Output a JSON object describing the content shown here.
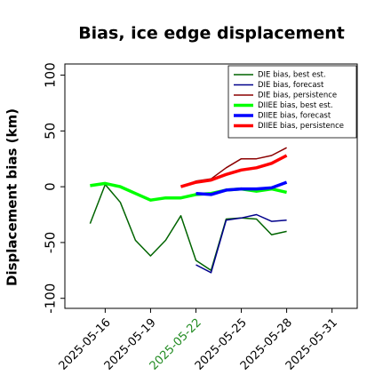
{
  "chart_data": {
    "type": "line",
    "title": "Bias, ice edge displacement",
    "ylabel": "Displacement bias (km)",
    "x": [
      "2025-05-15",
      "2025-05-16",
      "2025-05-17",
      "2025-05-18",
      "2025-05-19",
      "2025-05-20",
      "2025-05-21",
      "2025-05-22",
      "2025-05-23",
      "2025-05-24",
      "2025-05-25",
      "2025-05-26",
      "2025-05-27",
      "2025-05-28"
    ],
    "xlim": [
      "2025-05-13T08:00Z",
      "2025-06-01T16:00Z"
    ],
    "xticks": [
      "2025-05-16",
      "2025-05-19",
      "2025-05-22",
      "2025-05-25",
      "2025-05-28",
      "2025-05-31"
    ],
    "xtick_colors": [
      "#000000",
      "#000000",
      "#228b22",
      "#000000",
      "#000000",
      "#000000"
    ],
    "ylim": [
      -109,
      110
    ],
    "yticks": [
      -100,
      -50,
      0,
      50,
      100
    ],
    "legend": "upper right",
    "series": [
      {
        "name": "DIE bias, best est.",
        "color": "#006400",
        "width": 1.5,
        "values": [
          -33,
          2,
          -14,
          -48,
          -62,
          -48,
          -26,
          -66,
          -75,
          -29,
          -28,
          -29,
          -43,
          -40
        ]
      },
      {
        "name": "DIE bias, forecast",
        "color": "#00008b",
        "width": 1.5,
        "values": [
          null,
          null,
          null,
          null,
          null,
          null,
          null,
          -70,
          -77,
          -30,
          -28,
          -25,
          -31,
          -30
        ]
      },
      {
        "name": "DIE bias, persistence",
        "color": "#8b0000",
        "width": 1.5,
        "values": [
          null,
          null,
          null,
          null,
          null,
          null,
          0,
          5,
          7,
          17,
          25,
          25,
          28,
          35
        ]
      },
      {
        "name": "DIIEE bias, best est.",
        "color": "#00ff00",
        "width": 3.5,
        "values": [
          1,
          3,
          0,
          -6,
          -12,
          -10,
          -10,
          -7,
          -6,
          -3,
          -2,
          -4,
          -2,
          -5
        ]
      },
      {
        "name": "DIIEE bias, forecast",
        "color": "#0000ff",
        "width": 3.5,
        "values": [
          null,
          null,
          null,
          null,
          null,
          null,
          null,
          -6,
          -7,
          -3,
          -2,
          -2,
          -1,
          4
        ]
      },
      {
        "name": "DIIEE bias, persistence",
        "color": "#ff0000",
        "width": 3.5,
        "values": [
          null,
          null,
          null,
          null,
          null,
          null,
          0,
          4,
          6,
          11,
          15,
          17,
          21,
          28
        ]
      }
    ]
  }
}
